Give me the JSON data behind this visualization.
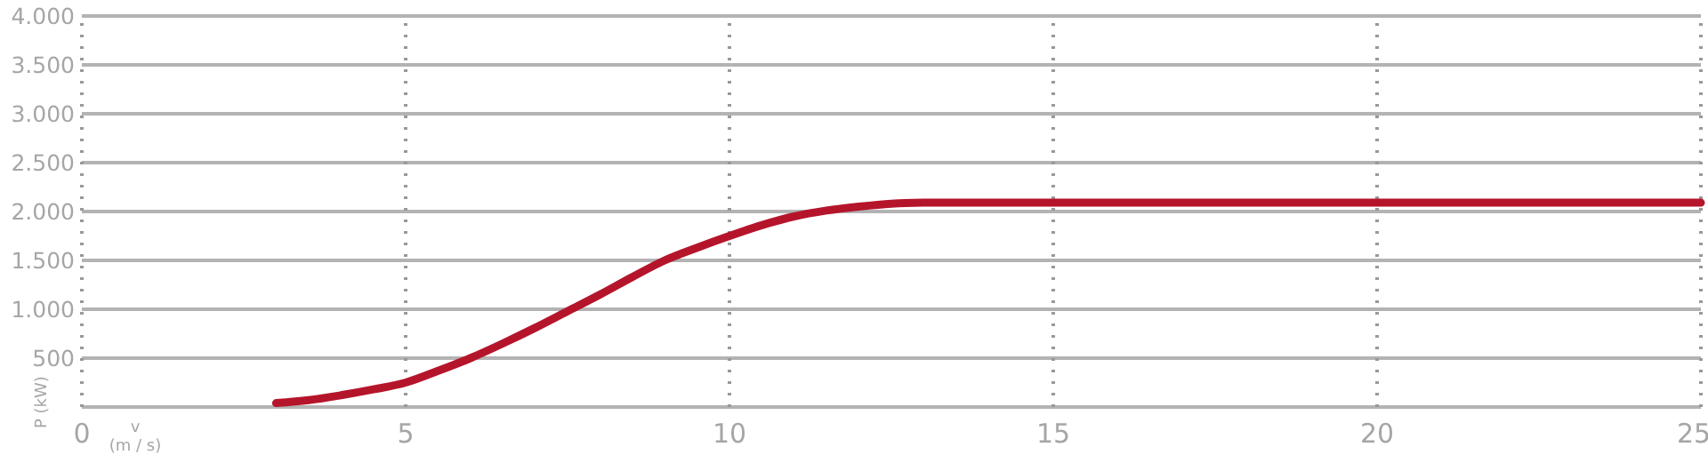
{
  "chart_data": {
    "type": "line",
    "xlabel": "v (m / s)",
    "ylabel": "P (kW)",
    "x": [
      3,
      3.5,
      4,
      4.5,
      5,
      5.5,
      6,
      6.5,
      7,
      7.5,
      8,
      8.5,
      9,
      9.5,
      10,
      10.5,
      11,
      11.5,
      12,
      12.5,
      13,
      13.5,
      25
    ],
    "series": [
      {
        "color": "#b5152b",
        "values": [
          40,
          70,
          120,
          180,
          250,
          370,
          500,
          650,
          810,
          980,
          1150,
          1330,
          1500,
          1630,
          1750,
          1860,
          1950,
          2010,
          2050,
          2080,
          2090,
          2090,
          2090
        ]
      }
    ],
    "xlim": [
      0,
      25
    ],
    "xticks": [
      0,
      5,
      10,
      15,
      20,
      25
    ],
    "ylim": [
      0,
      4000
    ],
    "yticks": [
      {
        "value": 0,
        "label": null
      },
      {
        "value": 500,
        "label": "500"
      },
      {
        "value": 1000,
        "label": "1.000"
      },
      {
        "value": 1500,
        "label": "1.500"
      },
      {
        "value": 2000,
        "label": "2.000"
      },
      {
        "value": 2500,
        "label": "2.500"
      },
      {
        "value": 3000,
        "label": "3.000"
      },
      {
        "value": 3500,
        "label": "3.500"
      },
      {
        "value": 4000,
        "label": "4.000"
      }
    ],
    "grid": true,
    "marker": "none",
    "line_style": "solid"
  }
}
